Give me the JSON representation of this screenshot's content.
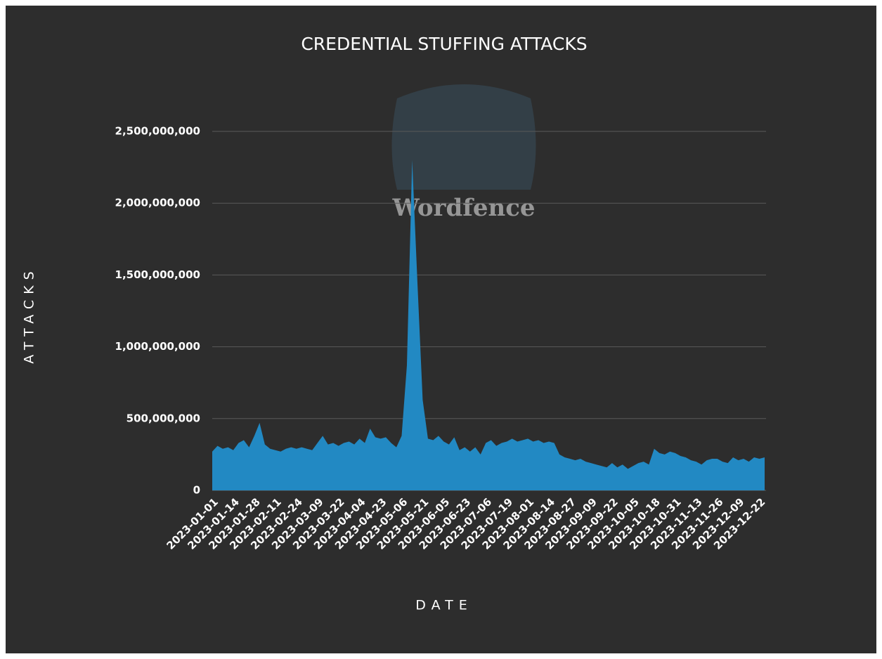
{
  "chart_data": {
    "type": "area",
    "title": "CREDENTIAL STUFFING ATTACKS",
    "xlabel": "DATE",
    "ylabel": "ATTACKS",
    "watermark": "Wordfence",
    "categories": [
      "2023-01-01",
      null,
      null,
      null,
      "2023-01-14",
      null,
      null,
      null,
      "2023-01-28",
      null,
      null,
      null,
      "2023-02-11",
      null,
      null,
      null,
      "2023-02-24",
      null,
      null,
      null,
      "2023-03-09",
      null,
      null,
      null,
      "2023-03-22",
      null,
      null,
      null,
      "2023-04-04",
      null,
      null,
      null,
      "2023-04-23",
      null,
      null,
      null,
      "2023-05-06",
      null,
      null,
      null,
      "2023-05-21",
      null,
      null,
      null,
      "2023-06-05",
      null,
      null,
      null,
      "2023-06-23",
      null,
      null,
      null,
      "2023-07-06",
      null,
      null,
      null,
      "2023-07-19",
      null,
      null,
      null,
      "2023-08-01",
      null,
      null,
      null,
      "2023-08-14",
      null,
      null,
      null,
      "2023-08-27",
      null,
      null,
      null,
      "2023-09-09",
      null,
      null,
      null,
      "2023-09-22",
      null,
      null,
      null,
      "2023-10-05",
      null,
      null,
      null,
      "2023-10-18",
      null,
      null,
      null,
      "2023-10-31",
      null,
      null,
      null,
      "2023-11-13",
      null,
      null,
      null,
      "2023-11-26",
      null,
      null,
      null,
      "2023-12-09",
      null,
      null,
      null,
      "2023-12-22",
      null
    ],
    "values": [
      270000000,
      310000000,
      290000000,
      300000000,
      280000000,
      330000000,
      350000000,
      300000000,
      380000000,
      470000000,
      320000000,
      290000000,
      280000000,
      270000000,
      290000000,
      300000000,
      290000000,
      300000000,
      290000000,
      280000000,
      330000000,
      380000000,
      320000000,
      330000000,
      310000000,
      330000000,
      340000000,
      320000000,
      360000000,
      330000000,
      430000000,
      370000000,
      360000000,
      370000000,
      330000000,
      300000000,
      380000000,
      870000000,
      2300000000,
      1450000000,
      630000000,
      360000000,
      350000000,
      380000000,
      340000000,
      320000000,
      370000000,
      280000000,
      300000000,
      270000000,
      300000000,
      250000000,
      330000000,
      350000000,
      310000000,
      330000000,
      340000000,
      360000000,
      340000000,
      350000000,
      360000000,
      340000000,
      350000000,
      330000000,
      340000000,
      330000000,
      250000000,
      230000000,
      220000000,
      210000000,
      220000000,
      200000000,
      190000000,
      180000000,
      170000000,
      160000000,
      190000000,
      160000000,
      180000000,
      150000000,
      170000000,
      190000000,
      200000000,
      180000000,
      290000000,
      260000000,
      250000000,
      270000000,
      260000000,
      240000000,
      230000000,
      210000000,
      200000000,
      180000000,
      210000000,
      220000000,
      220000000,
      200000000,
      190000000,
      230000000,
      210000000,
      220000000,
      200000000,
      230000000,
      220000000,
      230000000
    ],
    "color": "#2289c3",
    "ylim": [
      0,
      2500000000
    ],
    "yticks": [
      0,
      {
        "value": 500000000,
        "label": "500,000,000"
      },
      {
        "value": 1000000000,
        "label": "1,000,000,000"
      },
      {
        "value": 1500000000,
        "label": "1,500,000,000"
      },
      {
        "value": 2000000000,
        "label": "2,000,000,000"
      },
      {
        "value": 2500000000,
        "label": "2,500,000,000"
      }
    ],
    "grid": true
  }
}
